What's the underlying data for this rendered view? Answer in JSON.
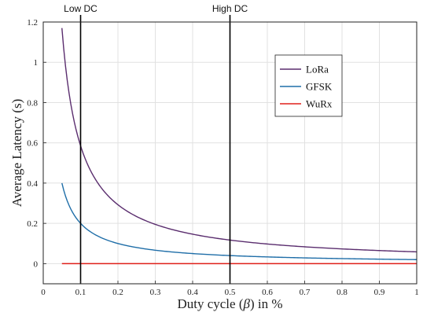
{
  "chart_data": {
    "type": "line",
    "xlabel_parts": [
      "Duty cycle (",
      "β",
      ") in %"
    ],
    "ylabel": "Average Latency (s)",
    "xlim": [
      0,
      1
    ],
    "ylim": [
      -0.1,
      1.2
    ],
    "xticks": [
      0,
      0.1,
      0.2,
      0.3,
      0.4,
      0.5,
      0.6,
      0.7,
      0.8,
      0.9,
      1
    ],
    "xtick_labels": [
      "0",
      "0.1",
      "0.2",
      "0.3",
      "0.4",
      "0.5",
      "0.6",
      "0.7",
      "0.8",
      "0.9",
      "1"
    ],
    "yticks": [
      0,
      0.2,
      0.4,
      0.6,
      0.8,
      1,
      1.2
    ],
    "ytick_labels": [
      "0",
      "0.2",
      "0.4",
      "0.6",
      "0.8",
      "1",
      "1.2"
    ],
    "grid": true,
    "legend_position": "top-right",
    "series": [
      {
        "name": "LoRa",
        "color": "#5a2d6e",
        "x": [
          0.05,
          0.06,
          0.07,
          0.08,
          0.1,
          0.12,
          0.15,
          0.2,
          0.25,
          0.3,
          0.4,
          0.5,
          0.6,
          0.7,
          0.8,
          0.9,
          1.0
        ],
        "y": [
          1.17,
          0.975,
          0.836,
          0.731,
          0.585,
          0.488,
          0.39,
          0.293,
          0.234,
          0.195,
          0.146,
          0.117,
          0.0975,
          0.0836,
          0.0731,
          0.065,
          0.0585
        ]
      },
      {
        "name": "GFSK",
        "color": "#1f6ea8",
        "x": [
          0.05,
          0.06,
          0.07,
          0.08,
          0.1,
          0.12,
          0.15,
          0.2,
          0.25,
          0.3,
          0.4,
          0.5,
          0.6,
          0.7,
          0.8,
          0.9,
          1.0
        ],
        "y": [
          0.4,
          0.333,
          0.286,
          0.25,
          0.2,
          0.167,
          0.133,
          0.1,
          0.08,
          0.0667,
          0.05,
          0.04,
          0.0333,
          0.0286,
          0.025,
          0.0222,
          0.02
        ]
      },
      {
        "name": "WuRx",
        "color": "#e0201a",
        "x": [
          0.05,
          1.0
        ],
        "y": [
          0.0,
          0.0
        ]
      }
    ],
    "vertical_markers": [
      {
        "x": 0.1,
        "label": "Low DC"
      },
      {
        "x": 0.5,
        "label": "High DC"
      }
    ]
  }
}
